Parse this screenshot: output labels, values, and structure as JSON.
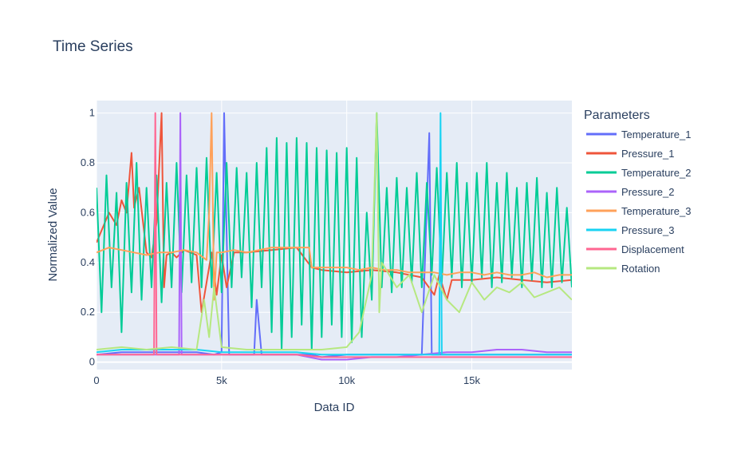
{
  "chart_data": {
    "type": "line",
    "title": "Time Series",
    "xlabel": "Data ID",
    "ylabel": "Normalized Value",
    "xlim": [
      0,
      19000
    ],
    "ylim": [
      -0.03,
      1.05
    ],
    "x_ticks": [
      0,
      5000,
      10000,
      15000
    ],
    "x_tick_labels": [
      "0",
      "5k",
      "10k",
      "15k"
    ],
    "y_ticks": [
      0,
      0.2,
      0.4,
      0.6,
      0.8,
      1
    ],
    "y_tick_labels": [
      "0",
      "0.2",
      "0.4",
      "0.6",
      "0.8",
      "1"
    ],
    "grid": true,
    "legend_title": "Parameters",
    "legend_position": "right",
    "series": [
      {
        "name": "Temperature_1",
        "color": "#636efa",
        "x": [
          0,
          1000,
          2000,
          3000,
          4000,
          4700,
          5000,
          5100,
          5300,
          6000,
          6300,
          6400,
          6600,
          7000,
          8000,
          8600,
          9000,
          10000,
          11000,
          12000,
          13000,
          13300,
          13400,
          14000,
          15000,
          16000,
          17000,
          18000,
          19000
        ],
        "y": [
          0.03,
          0.04,
          0.04,
          0.04,
          0.04,
          0.03,
          0.04,
          1.0,
          0.03,
          0.03,
          0.03,
          0.25,
          0.03,
          0.03,
          0.03,
          0.03,
          0.02,
          0.03,
          0.03,
          0.03,
          0.03,
          0.92,
          0.03,
          0.03,
          0.03,
          0.03,
          0.03,
          0.03,
          0.03
        ]
      },
      {
        "name": "Pressure_1",
        "color": "#ef553b",
        "x": [
          0,
          500,
          800,
          1000,
          1200,
          1400,
          1500,
          1700,
          2000,
          2200,
          2400,
          2600,
          2700,
          2800,
          3000,
          3200,
          3500,
          4000,
          4200,
          4600,
          4800,
          5000,
          5200,
          5500,
          6000,
          7000,
          8000,
          8600,
          9000,
          10000,
          11000,
          12000,
          13000,
          13500,
          13700,
          14000,
          14200,
          15000,
          16000,
          17000,
          18000,
          19000
        ],
        "y": [
          0.48,
          0.6,
          0.55,
          0.65,
          0.6,
          0.84,
          0.62,
          0.7,
          0.44,
          0.42,
          0.56,
          1.0,
          0.3,
          0.43,
          0.44,
          0.42,
          0.45,
          0.43,
          0.2,
          0.44,
          0.27,
          0.43,
          0.3,
          0.44,
          0.44,
          0.45,
          0.46,
          0.38,
          0.37,
          0.36,
          0.37,
          0.36,
          0.34,
          0.27,
          0.35,
          0.25,
          0.33,
          0.33,
          0.34,
          0.33,
          0.32,
          0.33
        ]
      },
      {
        "name": "Temperature_2",
        "color": "#00cc96",
        "x": [
          0,
          200,
          400,
          600,
          800,
          1000,
          1200,
          1400,
          1600,
          1800,
          2000,
          2200,
          2400,
          2600,
          2800,
          3000,
          3200,
          3400,
          3600,
          3800,
          4000,
          4200,
          4400,
          4600,
          4800,
          5000,
          5200,
          5400,
          5600,
          5800,
          6000,
          6200,
          6400,
          6600,
          6800,
          7000,
          7200,
          7400,
          7600,
          7800,
          8000,
          8200,
          8400,
          8600,
          8800,
          9000,
          9200,
          9400,
          9600,
          9800,
          10000,
          10200,
          10400,
          10600,
          10800,
          11000,
          11200,
          11400,
          11600,
          11800,
          12000,
          12200,
          12400,
          12600,
          12800,
          13000,
          13200,
          13400,
          13600,
          13800,
          14000,
          14200,
          14400,
          14600,
          14800,
          15000,
          15200,
          15400,
          15600,
          15800,
          16000,
          16200,
          16400,
          16600,
          16800,
          17000,
          17200,
          17400,
          17600,
          17800,
          18000,
          18200,
          18400,
          18600,
          18800,
          19000
        ],
        "y": [
          0.7,
          0.2,
          0.75,
          0.3,
          0.68,
          0.12,
          0.72,
          0.28,
          0.8,
          0.25,
          0.7,
          0.3,
          0.75,
          0.24,
          0.72,
          0.3,
          0.8,
          0.28,
          0.75,
          0.32,
          0.78,
          0.3,
          0.82,
          0.3,
          0.76,
          0.28,
          0.8,
          0.3,
          0.78,
          0.34,
          0.76,
          0.22,
          0.8,
          0.3,
          0.86,
          0.12,
          0.9,
          0.05,
          0.88,
          0.1,
          0.9,
          0.15,
          0.88,
          0.05,
          0.86,
          0.1,
          0.85,
          0.15,
          0.84,
          0.1,
          0.86,
          0.08,
          0.82,
          0.1,
          0.6,
          0.25,
          1.0,
          0.3,
          0.7,
          0.28,
          0.74,
          0.3,
          0.7,
          0.32,
          0.76,
          0.3,
          0.72,
          0.35,
          0.78,
          0.32,
          0.76,
          0.34,
          0.8,
          0.3,
          0.72,
          0.32,
          0.76,
          0.34,
          0.8,
          0.3,
          0.72,
          0.32,
          0.76,
          0.34,
          0.7,
          0.3,
          0.72,
          0.33,
          0.74,
          0.3,
          0.68,
          0.3,
          0.7,
          0.32,
          0.62,
          0.3
        ]
      },
      {
        "name": "Pressure_2",
        "color": "#ab63fa",
        "x": [
          0,
          1000,
          2000,
          3000,
          3300,
          3350,
          3400,
          4000,
          5000,
          6000,
          7000,
          8000,
          9000,
          10000,
          11000,
          12000,
          13000,
          14000,
          15000,
          16000,
          17000,
          18000,
          19000
        ],
        "y": [
          0.03,
          0.03,
          0.03,
          0.03,
          0.03,
          1.0,
          0.03,
          0.03,
          0.03,
          0.03,
          0.03,
          0.03,
          0.01,
          0.01,
          0.02,
          0.02,
          0.03,
          0.04,
          0.04,
          0.05,
          0.05,
          0.04,
          0.04
        ]
      },
      {
        "name": "Temperature_3",
        "color": "#ffa15a",
        "x": [
          0,
          500,
          1000,
          1500,
          2000,
          2500,
          3000,
          3500,
          4000,
          4400,
          4500,
          4600,
          4700,
          4800,
          5000,
          5500,
          6000,
          6500,
          7000,
          7500,
          8000,
          8500,
          8600,
          9000,
          9500,
          10000,
          10500,
          11000,
          11500,
          12000,
          12500,
          13000,
          13500,
          14000,
          14500,
          15000,
          15500,
          16000,
          16500,
          17000,
          17500,
          18000,
          18500,
          19000
        ],
        "y": [
          0.44,
          0.46,
          0.45,
          0.44,
          0.43,
          0.44,
          0.44,
          0.45,
          0.44,
          0.41,
          0.6,
          1.0,
          0.25,
          0.44,
          0.44,
          0.45,
          0.44,
          0.45,
          0.46,
          0.46,
          0.46,
          0.46,
          0.38,
          0.38,
          0.38,
          0.38,
          0.37,
          0.38,
          0.37,
          0.37,
          0.36,
          0.36,
          0.36,
          0.35,
          0.36,
          0.36,
          0.35,
          0.36,
          0.35,
          0.35,
          0.36,
          0.34,
          0.35,
          0.35
        ]
      },
      {
        "name": "Pressure_3",
        "color": "#19d3f3",
        "x": [
          0,
          1000,
          2000,
          3000,
          4000,
          5000,
          6000,
          7000,
          8000,
          9000,
          10000,
          11000,
          12000,
          13000,
          13700,
          13750,
          13800,
          14000,
          15000,
          16000,
          17000,
          18000,
          19000
        ],
        "y": [
          0.04,
          0.05,
          0.05,
          0.05,
          0.05,
          0.04,
          0.04,
          0.04,
          0.04,
          0.03,
          0.03,
          0.03,
          0.03,
          0.03,
          0.03,
          1.0,
          0.03,
          0.03,
          0.03,
          0.03,
          0.03,
          0.03,
          0.03
        ]
      },
      {
        "name": "Displacement",
        "color": "#ff6692",
        "x": [
          0,
          1000,
          2000,
          2300,
          2350,
          2400,
          3000,
          4000,
          5000,
          6000,
          7000,
          8000,
          9000,
          10000,
          11000,
          12000,
          13000,
          14000,
          15000,
          16000,
          17000,
          18000,
          19000
        ],
        "y": [
          0.03,
          0.03,
          0.03,
          0.03,
          1.0,
          0.03,
          0.03,
          0.03,
          0.03,
          0.03,
          0.03,
          0.03,
          0.02,
          0.02,
          0.02,
          0.02,
          0.02,
          0.02,
          0.02,
          0.02,
          0.02,
          0.02,
          0.02
        ]
      },
      {
        "name": "Rotation",
        "color": "#b6e880",
        "x": [
          0,
          1000,
          2000,
          3000,
          4000,
          4300,
          4500,
          4700,
          5000,
          6000,
          7000,
          8000,
          9000,
          10000,
          10500,
          11000,
          11200,
          11300,
          11400,
          12000,
          12500,
          13000,
          13500,
          14000,
          14500,
          15000,
          15500,
          16000,
          16500,
          17000,
          17500,
          18000,
          18500,
          19000
        ],
        "y": [
          0.05,
          0.06,
          0.05,
          0.06,
          0.05,
          0.25,
          0.1,
          0.3,
          0.06,
          0.05,
          0.05,
          0.05,
          0.05,
          0.06,
          0.12,
          0.35,
          1.0,
          0.2,
          0.4,
          0.3,
          0.35,
          0.2,
          0.35,
          0.25,
          0.2,
          0.32,
          0.25,
          0.3,
          0.28,
          0.32,
          0.26,
          0.28,
          0.3,
          0.25
        ]
      }
    ]
  }
}
